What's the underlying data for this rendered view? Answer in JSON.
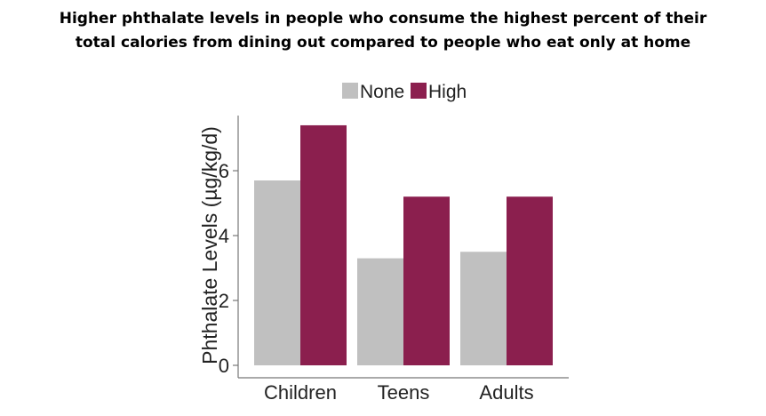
{
  "chart_data": {
    "type": "bar",
    "title_lines": [
      "Higher phthalate levels in people who consume the highest percent of their",
      "total calories from dining out compared to people who eat only at home"
    ],
    "ylabel": "Phthalate Levels (µg/kg/d)",
    "xlabel": "",
    "categories": [
      "Children",
      "Teens",
      "Adults"
    ],
    "series": [
      {
        "name": "None",
        "values": [
          5.7,
          3.3,
          3.5
        ],
        "color": "#c0c0c0"
      },
      {
        "name": "High",
        "values": [
          7.4,
          5.2,
          5.2
        ],
        "color": "#8b1f4e"
      }
    ],
    "ylim": [
      0,
      7.7
    ],
    "yticks": [
      0,
      2,
      4,
      6
    ],
    "grid": false,
    "legend_position": "top"
  }
}
